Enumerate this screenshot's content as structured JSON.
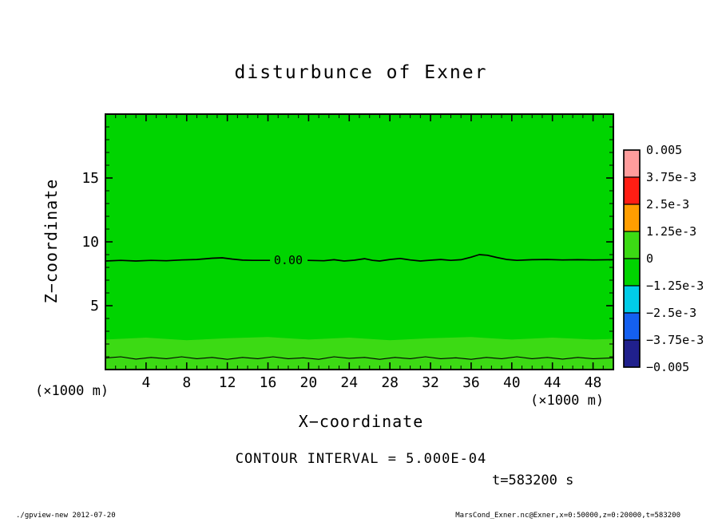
{
  "title": "disturbunce of Exner",
  "axes": {
    "x_label": "X−coordinate",
    "z_label": "Z−coordinate",
    "x_unit_left": "(×1000 m)",
    "x_unit_right": "(×1000 m)"
  },
  "annotations": {
    "contour_interval": "CONTOUR INTERVAL = 5.000E-04",
    "time": "t=583200 s"
  },
  "footer": {
    "left": "./gpview-new  2012-07-20",
    "right": "MarsCond_Exner.nc@Exner,x=0:50000,z=0:20000,t=583200"
  },
  "chart_data": {
    "type": "filled-contour",
    "title": "disturbunce of Exner",
    "xlabel": "X-coordinate",
    "ylabel": "Z-coordinate",
    "x_unit": "×1000 m",
    "z_unit": "×1000 m",
    "xlim": [
      0,
      50
    ],
    "zlim": [
      0,
      20
    ],
    "x_major_ticks": [
      4,
      8,
      12,
      16,
      20,
      24,
      28,
      32,
      36,
      40,
      44,
      48
    ],
    "x_minor_step": 1,
    "z_major_ticks": [
      5,
      10,
      15
    ],
    "z_minor_step": 1,
    "contour_interval": 0.0005,
    "time_seconds": 583200,
    "field_color": "#00D400",
    "band": {
      "color": "#3CDA14",
      "top_edge": [
        [
          0,
          2.35
        ],
        [
          4,
          2.5
        ],
        [
          8,
          2.3
        ],
        [
          12,
          2.45
        ],
        [
          16,
          2.55
        ],
        [
          20,
          2.35
        ],
        [
          24,
          2.5
        ],
        [
          28,
          2.3
        ],
        [
          32,
          2.45
        ],
        [
          36,
          2.55
        ],
        [
          40,
          2.35
        ],
        [
          44,
          2.5
        ],
        [
          48,
          2.35
        ],
        [
          50,
          2.4
        ]
      ]
    },
    "contours": [
      {
        "value": 0,
        "label": "0.00",
        "label_x": 18,
        "label_z": 8.55,
        "width": 1.7,
        "segments": [
          [
            [
              0,
              8.5
            ],
            [
              1.5,
              8.55
            ],
            [
              3,
              8.5
            ],
            [
              4.5,
              8.55
            ],
            [
              6,
              8.52
            ],
            [
              7.5,
              8.58
            ],
            [
              9,
              8.62
            ],
            [
              10.5,
              8.72
            ],
            [
              11.5,
              8.75
            ],
            [
              12.5,
              8.65
            ],
            [
              13.5,
              8.57
            ],
            [
              14.5,
              8.55
            ],
            [
              16.2,
              8.55
            ]
          ],
          [
            [
              19.9,
              8.55
            ],
            [
              21.5,
              8.52
            ],
            [
              22.5,
              8.6
            ],
            [
              23.5,
              8.5
            ],
            [
              24.5,
              8.56
            ],
            [
              25.5,
              8.68
            ],
            [
              26.3,
              8.55
            ],
            [
              27,
              8.5
            ],
            [
              28,
              8.62
            ],
            [
              29,
              8.7
            ],
            [
              30,
              8.58
            ],
            [
              31,
              8.5
            ],
            [
              32,
              8.56
            ],
            [
              33,
              8.62
            ],
            [
              34,
              8.55
            ],
            [
              35,
              8.6
            ],
            [
              36,
              8.8
            ],
            [
              36.8,
              9.0
            ],
            [
              37.6,
              8.95
            ],
            [
              38.5,
              8.78
            ],
            [
              39.5,
              8.62
            ],
            [
              40.5,
              8.55
            ],
            [
              42,
              8.6
            ],
            [
              43.5,
              8.62
            ],
            [
              45,
              8.58
            ],
            [
              46.5,
              8.6
            ],
            [
              48,
              8.58
            ],
            [
              50,
              8.6
            ]
          ]
        ]
      },
      {
        "value": 0,
        "label": null,
        "width": 1.1,
        "segments": [
          [
            [
              0,
              0.9
            ],
            [
              1.5,
              1.0
            ],
            [
              3,
              0.82
            ],
            [
              4.5,
              0.95
            ],
            [
              6,
              0.85
            ],
            [
              7.5,
              1.0
            ],
            [
              9,
              0.85
            ],
            [
              10.5,
              0.95
            ],
            [
              12,
              0.8
            ],
            [
              13.5,
              0.95
            ],
            [
              15,
              0.85
            ],
            [
              16.5,
              1.0
            ],
            [
              18,
              0.85
            ],
            [
              19.5,
              0.92
            ],
            [
              21,
              0.8
            ],
            [
              22.5,
              1.0
            ],
            [
              24,
              0.88
            ],
            [
              25.5,
              0.95
            ],
            [
              27,
              0.8
            ],
            [
              28.5,
              0.95
            ],
            [
              30,
              0.85
            ],
            [
              31.5,
              1.0
            ],
            [
              33,
              0.85
            ],
            [
              34.5,
              0.92
            ],
            [
              36,
              0.8
            ],
            [
              37.5,
              0.95
            ],
            [
              39,
              0.85
            ],
            [
              40.5,
              1.0
            ],
            [
              42,
              0.85
            ],
            [
              43.5,
              0.95
            ],
            [
              45,
              0.82
            ],
            [
              46.5,
              0.95
            ],
            [
              48,
              0.85
            ],
            [
              50,
              0.92
            ]
          ]
        ]
      }
    ],
    "colorbar": {
      "levels": [
        "0.005",
        "3.75e-3",
        "2.5e-3",
        "1.25e-3",
        "0",
        "−1.25e-3",
        "−2.5e-3",
        "−3.75e-3",
        "−0.005"
      ],
      "colors": [
        "#FF9C9C",
        "#FF1E14",
        "#FF9E00",
        "#3CDA14",
        "#00D400",
        "#00CCE8",
        "#1460F0",
        "#20208C"
      ]
    }
  }
}
